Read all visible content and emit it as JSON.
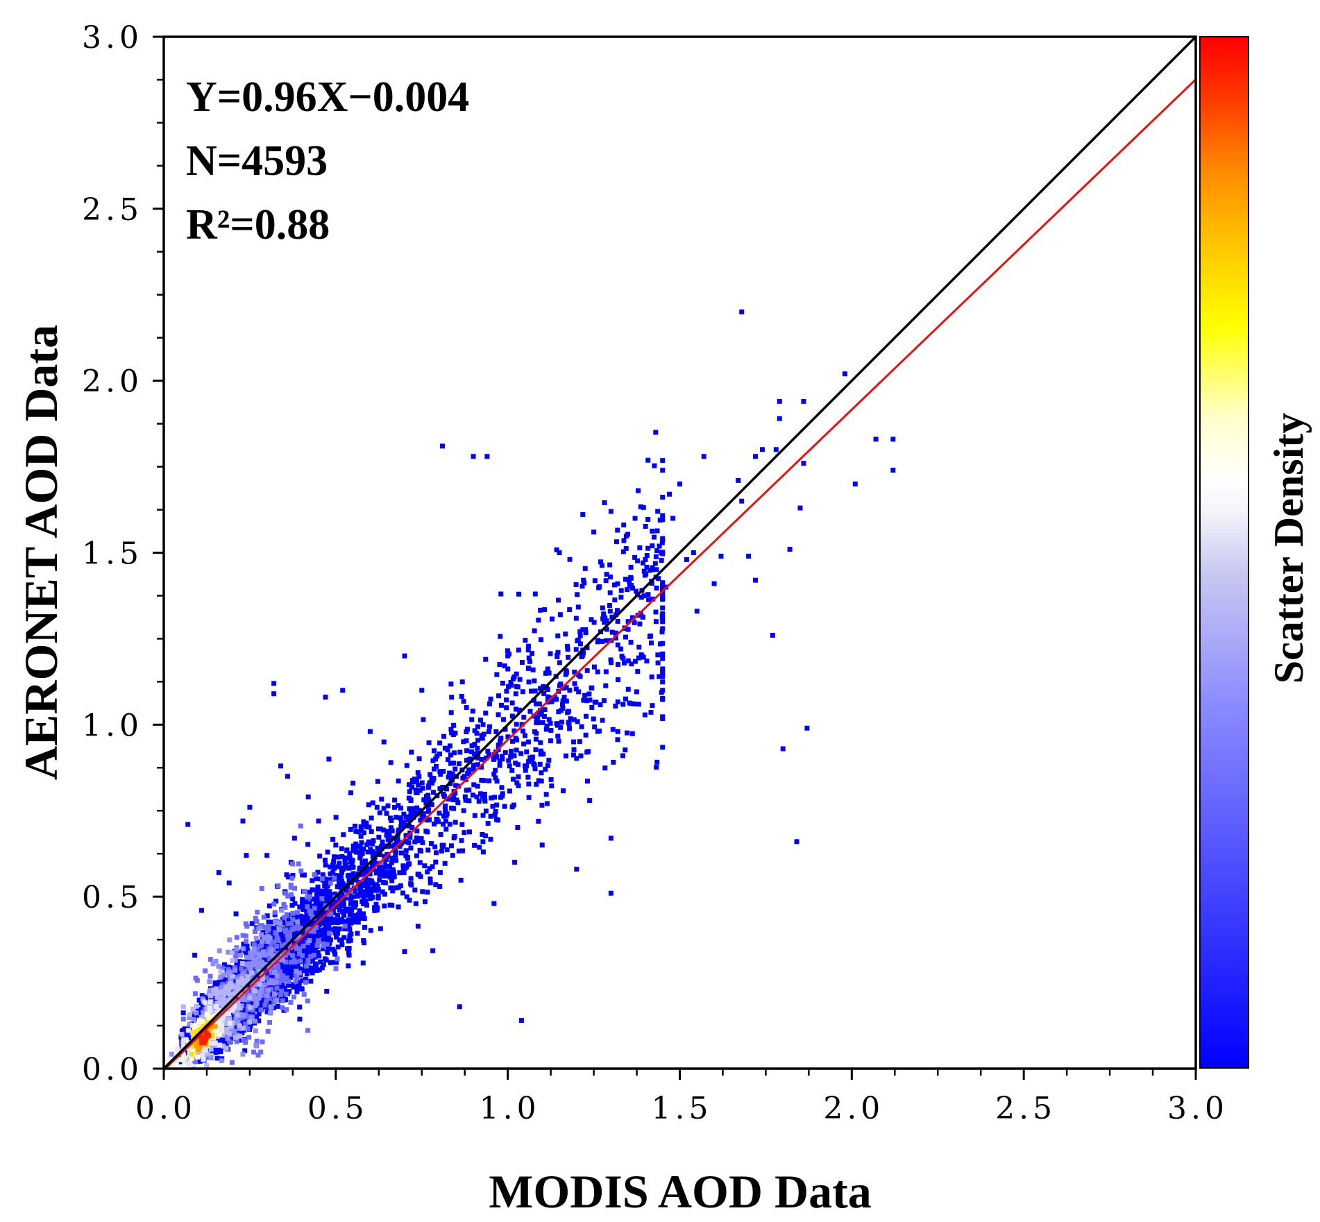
{
  "chart_data": {
    "type": "scatter",
    "title": "",
    "xlabel": "MODIS AOD Data",
    "ylabel": "AERONET AOD Data",
    "xlim": [
      0.0,
      3.0
    ],
    "ylim": [
      0.0,
      3.0
    ],
    "x_ticks": [
      "0.0",
      "0.5",
      "1.0",
      "1.5",
      "2.0",
      "2.5",
      "3.0"
    ],
    "y_ticks": [
      "0.0",
      "0.5",
      "1.0",
      "1.5",
      "2.0",
      "2.5",
      "3.0"
    ],
    "grid": false,
    "annotations": {
      "equation": "Y=0.96X−0.004",
      "n": "N=4593",
      "r2": "R²=0.88"
    },
    "n_points": 4593,
    "regression": {
      "slope": 0.96,
      "intercept": -0.004,
      "color": "#e81010",
      "label": "fit line"
    },
    "one_to_one": {
      "slope": 1.0,
      "intercept": 0.0,
      "color": "#000000",
      "label": "1:1 line"
    },
    "colorbar": {
      "label": "Scatter Density",
      "colors": [
        "#0000ff",
        "#5a5aff",
        "#a0a0f4",
        "#e2e2f8",
        "#ffffff",
        "#ffff9a",
        "#ffff00",
        "#ffcc00",
        "#ff8800",
        "#ff3300",
        "#ff0000"
      ]
    },
    "points": [
      [
        0.07,
        0.71
      ],
      [
        0.09,
        0.33
      ],
      [
        0.11,
        0.46
      ],
      [
        0.14,
        0.2
      ],
      [
        0.16,
        0.57
      ],
      [
        0.19,
        0.54
      ],
      [
        0.21,
        0.45
      ],
      [
        0.23,
        0.72
      ],
      [
        0.24,
        0.62
      ],
      [
        0.25,
        0.76
      ],
      [
        0.27,
        0.41
      ],
      [
        0.29,
        0.37
      ],
      [
        0.3,
        0.62
      ],
      [
        0.31,
        0.2
      ],
      [
        0.32,
        1.12
      ],
      [
        0.32,
        1.09
      ],
      [
        0.33,
        0.53
      ],
      [
        0.34,
        0.88
      ],
      [
        0.36,
        0.85
      ],
      [
        0.37,
        0.6
      ],
      [
        0.38,
        0.67
      ],
      [
        0.4,
        0.39
      ],
      [
        0.42,
        0.79
      ],
      [
        0.45,
        0.72
      ],
      [
        0.47,
        1.08
      ],
      [
        0.48,
        0.9
      ],
      [
        0.5,
        0.65
      ],
      [
        0.52,
        1.1
      ],
      [
        0.55,
        0.83
      ],
      [
        0.58,
        0.6
      ],
      [
        0.6,
        0.98
      ],
      [
        0.62,
        0.76
      ],
      [
        0.64,
        0.95
      ],
      [
        0.66,
        0.89
      ],
      [
        0.7,
        1.2
      ],
      [
        0.7,
        0.34
      ],
      [
        0.72,
        0.92
      ],
      [
        0.75,
        1.1
      ],
      [
        0.78,
        0.83
      ],
      [
        0.79,
        0.9
      ],
      [
        0.81,
        1.81
      ],
      [
        0.82,
        0.72
      ],
      [
        0.84,
        0.62
      ],
      [
        0.86,
        0.18
      ],
      [
        0.88,
        1.05
      ],
      [
        0.9,
        1.78
      ],
      [
        0.91,
        0.79
      ],
      [
        0.94,
        1.78
      ],
      [
        0.96,
        0.9
      ],
      [
        0.96,
        0.48
      ],
      [
        0.98,
        1.38
      ],
      [
        1.0,
        1.2
      ],
      [
        1.02,
        0.6
      ],
      [
        1.04,
        0.14
      ],
      [
        1.05,
        0.88
      ],
      [
        1.06,
        0.95
      ],
      [
        1.08,
        1.38
      ],
      [
        1.1,
        0.65
      ],
      [
        1.12,
        1.15
      ],
      [
        1.15,
        1.5
      ],
      [
        1.18,
        1.1
      ],
      [
        1.2,
        0.58
      ],
      [
        1.22,
        1.42
      ],
      [
        1.23,
        0.92
      ],
      [
        1.25,
        1.56
      ],
      [
        1.27,
        1.27
      ],
      [
        1.28,
        1.07
      ],
      [
        1.3,
        0.51
      ],
      [
        1.3,
        0.67
      ],
      [
        1.32,
        0.98
      ],
      [
        1.3,
        1.62
      ],
      [
        1.33,
        1.39
      ],
      [
        1.35,
        1.3
      ],
      [
        1.37,
        1.6
      ],
      [
        1.39,
        1.2
      ],
      [
        1.4,
        1.48
      ],
      [
        1.42,
        1.52
      ],
      [
        1.43,
        1.85
      ],
      [
        1.44,
        1.14
      ],
      [
        1.46,
        1.4
      ],
      [
        1.47,
        1.67
      ],
      [
        1.48,
        1.6
      ],
      [
        1.5,
        1.7
      ],
      [
        1.52,
        1.48
      ],
      [
        1.55,
        1.33
      ],
      [
        1.57,
        1.78
      ],
      [
        1.6,
        1.41
      ],
      [
        1.62,
        1.49
      ],
      [
        1.67,
        1.71
      ],
      [
        1.68,
        1.65
      ],
      [
        1.68,
        2.2
      ],
      [
        1.7,
        1.49
      ],
      [
        1.72,
        1.78
      ],
      [
        1.74,
        1.8
      ],
      [
        1.77,
        1.26
      ],
      [
        1.78,
        1.8
      ],
      [
        1.79,
        1.94
      ],
      [
        1.79,
        1.89
      ],
      [
        1.8,
        0.93
      ],
      [
        1.82,
        1.51
      ],
      [
        1.84,
        0.66
      ],
      [
        1.85,
        1.63
      ],
      [
        1.86,
        1.94
      ],
      [
        1.86,
        1.76
      ],
      [
        1.87,
        0.99
      ],
      [
        1.98,
        2.02
      ],
      [
        2.01,
        1.7
      ],
      [
        2.07,
        1.83
      ],
      [
        2.12,
        1.83
      ],
      [
        2.12,
        1.74
      ],
      [
        1.72,
        1.42
      ],
      [
        1.54,
        1.5
      ]
    ]
  }
}
